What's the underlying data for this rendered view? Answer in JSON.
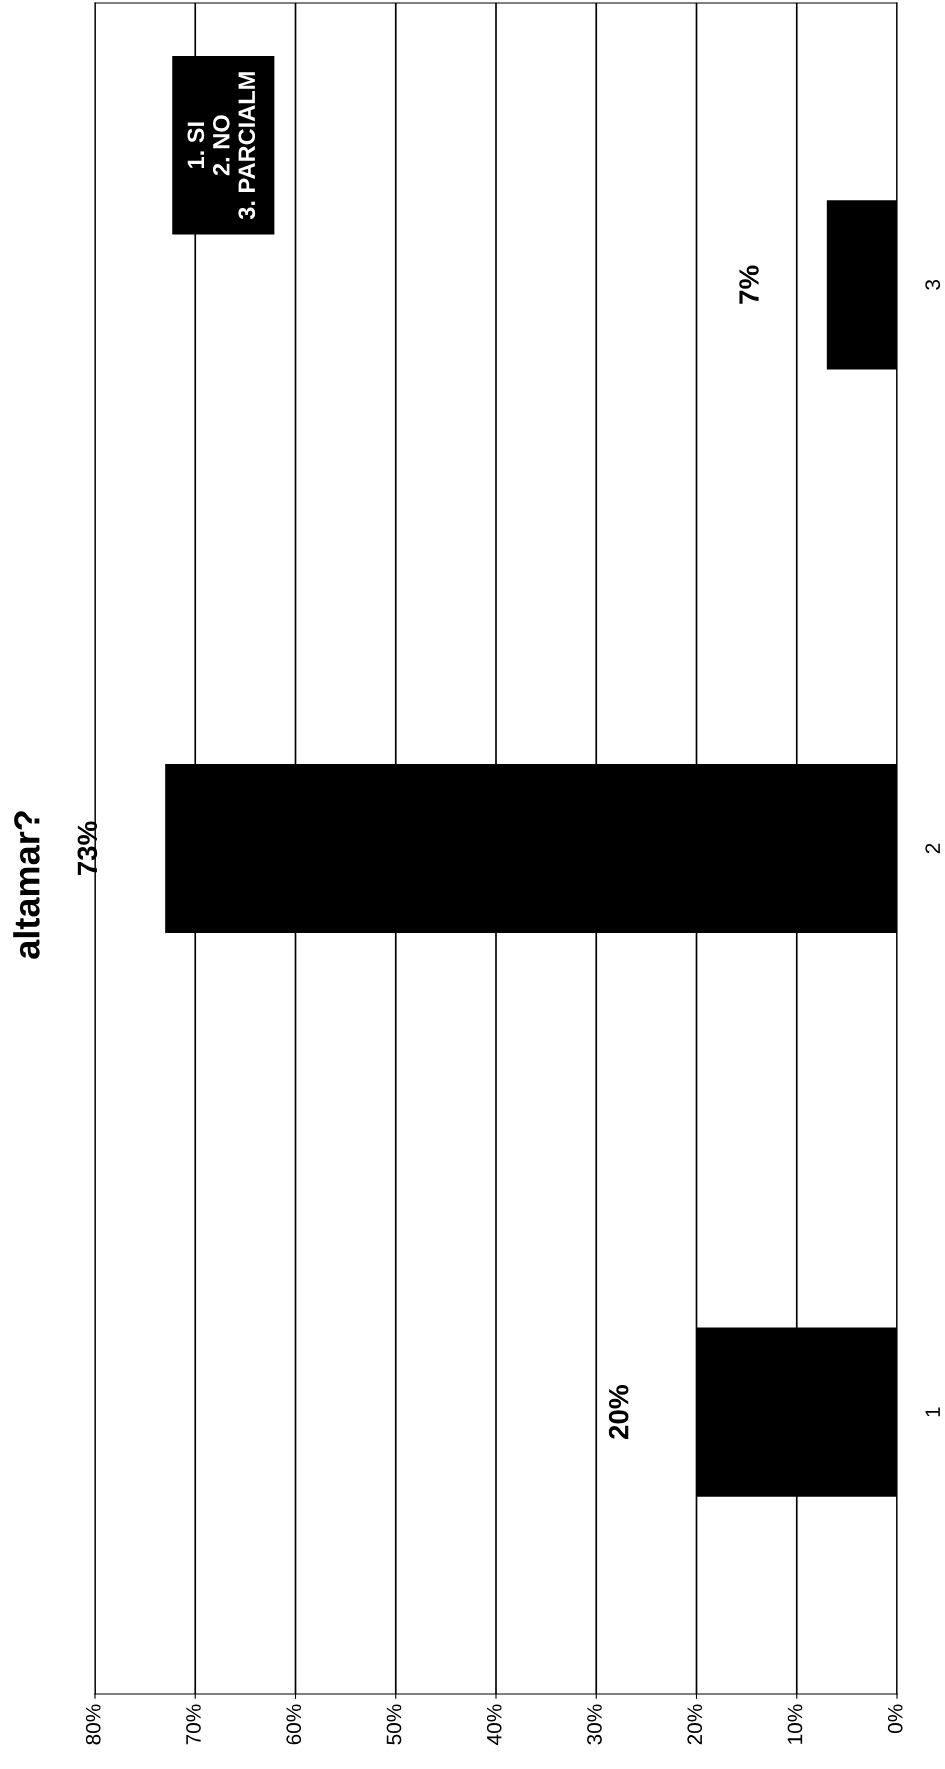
{
  "chart_data": {
    "type": "bar",
    "orientation": "horizontal",
    "title": "altamar?",
    "categories": [
      "3",
      "2",
      "1"
    ],
    "values": [
      7,
      73,
      20
    ],
    "color": "#000000",
    "xlim": [
      80,
      0
    ],
    "xticks": [
      {
        "value": 80,
        "label": "80%"
      },
      {
        "value": 70,
        "label": "70%"
      },
      {
        "value": 60,
        "label": "60%"
      },
      {
        "value": 50,
        "label": "50%"
      },
      {
        "value": 40,
        "label": "40%"
      },
      {
        "value": 30,
        "label": "30%"
      },
      {
        "value": 20,
        "label": "20%"
      },
      {
        "value": 10,
        "label": "10%"
      },
      {
        "value": 0,
        "label": "0%"
      }
    ],
    "value_labels": [
      "7%",
      "73%",
      "20%"
    ],
    "annotations": [
      "1. SI\n2. NO\n3. PARCIALM"
    ],
    "grid": "x",
    "legend": false
  }
}
